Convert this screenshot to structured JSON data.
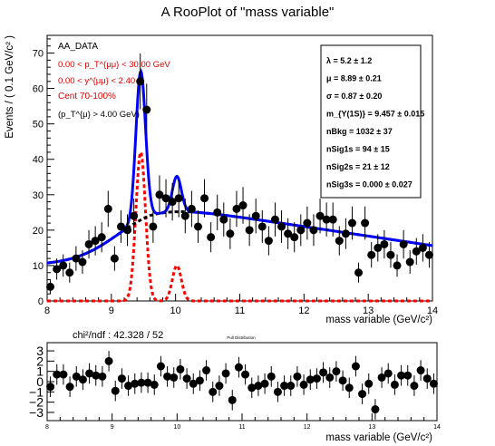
{
  "chart_data": [
    {
      "type": "scatter",
      "title": "A RooPlot of \"mass variable\"",
      "xlabel": "mass variable (GeV/c²)",
      "ylabel": "Events / ( 0.1 GeV/c² )",
      "xlim": [
        8,
        14
      ],
      "ylim": [
        0,
        75
      ],
      "xticks": [
        "8",
        "9",
        "10",
        "11",
        "12",
        "13",
        "14"
      ],
      "yticks": [
        "0",
        "10",
        "20",
        "30",
        "40",
        "50",
        "60",
        "70"
      ],
      "grid": false,
      "data_points": {
        "name": "AA_DATA",
        "x": [
          8.05,
          8.15,
          8.25,
          8.35,
          8.45,
          8.55,
          8.65,
          8.75,
          8.85,
          8.95,
          9.05,
          9.15,
          9.25,
          9.35,
          9.45,
          9.55,
          9.65,
          9.75,
          9.85,
          9.95,
          10.05,
          10.15,
          10.25,
          10.35,
          10.45,
          10.55,
          10.65,
          10.75,
          10.85,
          10.95,
          11.05,
          11.15,
          11.25,
          11.35,
          11.45,
          11.55,
          11.65,
          11.75,
          11.85,
          11.95,
          12.05,
          12.15,
          12.25,
          12.35,
          12.45,
          12.55,
          12.65,
          12.75,
          12.85,
          12.95,
          13.05,
          13.15,
          13.25,
          13.35,
          13.45,
          13.55,
          13.65,
          13.75,
          13.85,
          13.95
        ],
        "y": [
          4,
          9,
          10,
          8,
          12,
          11,
          16,
          17,
          18,
          26,
          12,
          21,
          20,
          24,
          62,
          54,
          21,
          30,
          29,
          28,
          29,
          24,
          26,
          21,
          29,
          18,
          25,
          23,
          19,
          26,
          27,
          20,
          24,
          21,
          17,
          23,
          21,
          19,
          18,
          20,
          22,
          20,
          24,
          23,
          23,
          17,
          19,
          22,
          8,
          22,
          13,
          15,
          16,
          13,
          10,
          16,
          11,
          14,
          15,
          13
        ]
      },
      "curves": [
        {
          "name": "total fit",
          "color": "#0000ff",
          "style": "solid"
        },
        {
          "name": "background",
          "color": "#000000",
          "style": "dashed"
        },
        {
          "name": "signal",
          "color": "#ff0000",
          "style": "dashed"
        }
      ],
      "annotations": [
        {
          "text": "AA_DATA",
          "color": "#000000"
        },
        {
          "text": "0.00 < p_T^{μμ} < 30.00 GeV",
          "color": "#e00000"
        },
        {
          "text": "0.00 < y^{μμ} < 2.40",
          "color": "#e00000"
        },
        {
          "text": "Cent 70-100%",
          "color": "#e00000"
        },
        {
          "text": "(p_T^{μ} > 4.00 GeV)",
          "color": "#000000"
        }
      ],
      "fit_params": [
        "λ = 5.2 ± 1.2",
        "μ = 8.89 ± 0.21",
        "σ = 0.87 ± 0.20",
        "m_{Υ(1S)} = 9.457 ± 0.015",
        "nBkg = 1032 ± 37",
        "nSig1s = 94 ± 15",
        "nSig2s = 21 ± 12",
        "nSig3s = 0.000 ± 0.027"
      ]
    },
    {
      "type": "scatter",
      "title": "Pull Distribution",
      "xlabel": "mass variable (GeV/c²)",
      "ylabel": "",
      "xlim": [
        8,
        14
      ],
      "ylim": [
        -3.8,
        3.8
      ],
      "xticks": [
        "8",
        "9",
        "10",
        "11",
        "12",
        "13",
        "14"
      ],
      "yticks": [
        "−3",
        "−2",
        "−1",
        "0",
        "1",
        "2",
        "3"
      ],
      "chi2_label": "chi²/ndf : 42.328 / 52",
      "pulls": {
        "x": [
          8.05,
          8.15,
          8.25,
          8.35,
          8.45,
          8.55,
          8.65,
          8.75,
          8.85,
          8.95,
          9.05,
          9.15,
          9.25,
          9.35,
          9.45,
          9.55,
          9.65,
          9.75,
          9.85,
          9.95,
          10.05,
          10.15,
          10.25,
          10.35,
          10.45,
          10.55,
          10.65,
          10.75,
          10.85,
          10.95,
          11.05,
          11.15,
          11.25,
          11.35,
          11.45,
          11.55,
          11.65,
          11.75,
          11.85,
          11.95,
          12.05,
          12.15,
          12.25,
          12.35,
          12.45,
          12.55,
          12.65,
          12.75,
          12.85,
          12.95,
          13.05,
          13.15,
          13.25,
          13.35,
          13.45,
          13.55,
          13.65,
          13.75,
          13.85,
          13.95
        ],
        "y": [
          -0.5,
          0.7,
          0.7,
          -0.5,
          0.5,
          0.2,
          0.8,
          0.6,
          0.5,
          2.0,
          -0.9,
          0.3,
          -0.4,
          -0.2,
          -0.1,
          -0.1,
          -0.3,
          1.5,
          0.5,
          0.4,
          1.2,
          0.3,
          -0.2,
          0.1,
          1.1,
          -1.0,
          -0.4,
          0.8,
          -1.8,
          1.4,
          0.7,
          -0.6,
          -0.4,
          -0.2,
          0.5,
          -1.0,
          -0.4,
          -0.4,
          0.5,
          -0.3,
          0.2,
          0.3,
          0.9,
          0.4,
          1.0,
          0.1,
          -0.6,
          1.5,
          -1.2,
          -0.2,
          -2.7,
          0.4,
          0.8,
          -0.3,
          0.6,
          0.6,
          -0.4,
          1.1,
          0.3,
          -0.2
        ]
      }
    }
  ]
}
